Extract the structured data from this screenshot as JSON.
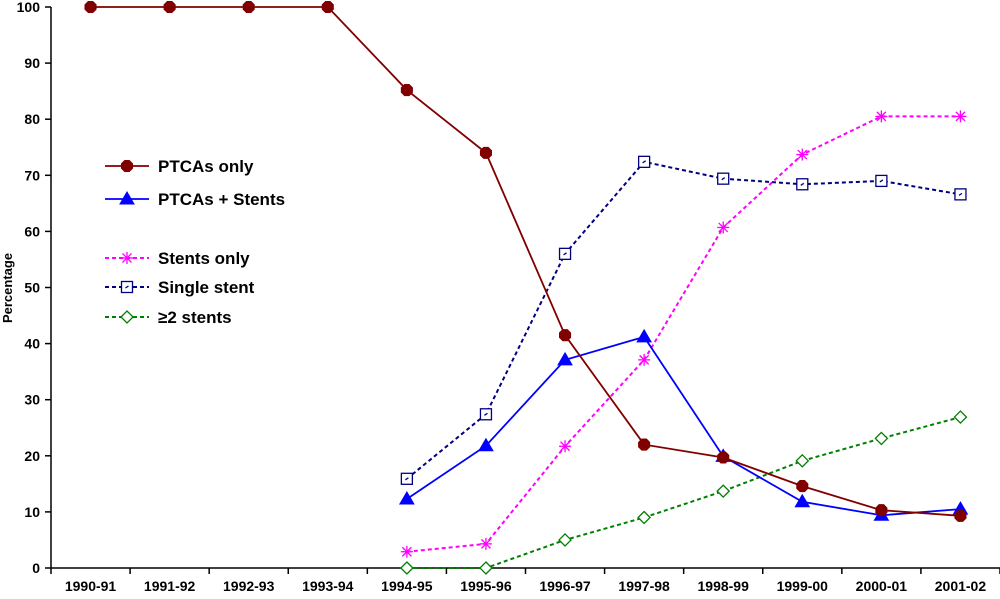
{
  "chart_data": {
    "type": "line",
    "ylabel": "Percentage",
    "ylim": [
      0,
      100
    ],
    "yticks": [
      "0",
      "10",
      "20",
      "30",
      "40",
      "50",
      "60",
      "70",
      "80",
      "90",
      "100"
    ],
    "categories": [
      "1990-91",
      "1991-92",
      "1992-93",
      "1993-94",
      "1994-95",
      "1995-96",
      "1996-97",
      "1997-98",
      "1998-99",
      "1999-00",
      "2000-01",
      "2001-02"
    ],
    "grid": false,
    "legend_position": "left-middle",
    "series": [
      {
        "name": "PTCAs only",
        "color": "#800000",
        "line_style": "solid",
        "marker": "octagon-filled",
        "values": [
          100,
          100,
          100,
          100,
          85.2,
          74,
          41.5,
          22,
          19.7,
          14.6,
          10.3,
          9.3
        ]
      },
      {
        "name": "PTCAs + Stents",
        "color": "#0000ff",
        "line_style": "solid",
        "marker": "triangle-filled",
        "values": [
          null,
          null,
          null,
          null,
          12.3,
          21.8,
          37.1,
          41.2,
          19.9,
          11.8,
          9.4,
          10.5
        ]
      },
      {
        "name": "Stents only",
        "color": "#ff00ff",
        "line_style": "dashed",
        "marker": "asterisk",
        "values": [
          null,
          null,
          null,
          null,
          2.9,
          4.3,
          21.7,
          37.1,
          60.7,
          73.7,
          80.5,
          80.5
        ]
      },
      {
        "name": "Single stent",
        "color": "#000080",
        "line_style": "dashed",
        "marker": "square-open",
        "values": [
          null,
          null,
          null,
          null,
          15.9,
          27.4,
          56,
          72.4,
          69.4,
          68.4,
          69,
          66.6
        ]
      },
      {
        "name": "≥2 stents",
        "color": "#008000",
        "line_style": "dashed",
        "marker": "diamond-open",
        "values": [
          null,
          null,
          null,
          null,
          0,
          0,
          5,
          9,
          13.7,
          19.1,
          23.1,
          26.9
        ]
      }
    ]
  }
}
